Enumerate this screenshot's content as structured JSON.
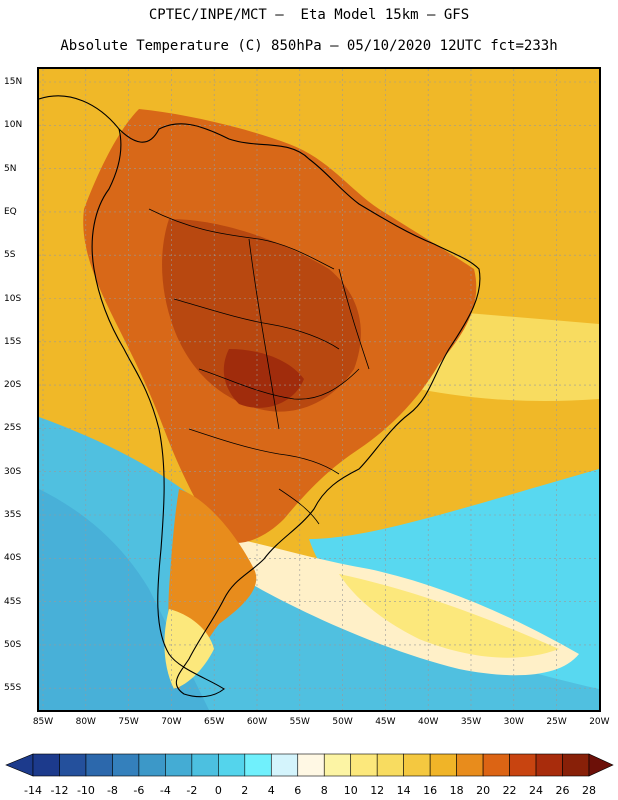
{
  "header": {
    "line1": "CPTEC/INPE/MCT –  Eta Model 15km – GFS",
    "line2": "Absolute Temperature (C) 850hPa – 05/10/2020 12UTC fct=233h"
  },
  "map": {
    "lat_labels": [
      "15N",
      "10N",
      "5N",
      "EQ",
      "5S",
      "10S",
      "15S",
      "20S",
      "25S",
      "30S",
      "35S",
      "40S",
      "45S",
      "50S",
      "55S"
    ],
    "lon_labels": [
      "85W",
      "80W",
      "75W",
      "70W",
      "65W",
      "60W",
      "55W",
      "50W",
      "45W",
      "40W",
      "35W",
      "30W",
      "25W",
      "20W"
    ],
    "colors": {
      "ocean_warm": "#f0b828",
      "land_hot": "#d86818",
      "core": "#b84810",
      "pale": "#fff0c8",
      "cool": "#58d8f0",
      "cold": "#50c0e0",
      "coast": "#000000",
      "grid": "#999999"
    }
  },
  "colorbar": {
    "levels": [
      "-14",
      "-12",
      "-10",
      "-8",
      "-6",
      "-4",
      "-2",
      "0",
      "2",
      "4",
      "6",
      "8",
      "10",
      "12",
      "14",
      "16",
      "18",
      "20",
      "22",
      "24",
      "26",
      "28"
    ],
    "colors": [
      "#1c3a8c",
      "#24509c",
      "#2c68ac",
      "#3480bc",
      "#3c98c8",
      "#44acd4",
      "#4cc0e0",
      "#54d4ec",
      "#70f0fc",
      "#d4f4fc",
      "#fff8e4",
      "#fcf4a4",
      "#fce87c",
      "#f8dc60",
      "#f4c840",
      "#f0b428",
      "#e88c1c",
      "#dc6414",
      "#c84410",
      "#a82c0c",
      "#882008"
    ],
    "end_left_color": "#1c3a8c",
    "end_right_color": "#6c1008"
  }
}
